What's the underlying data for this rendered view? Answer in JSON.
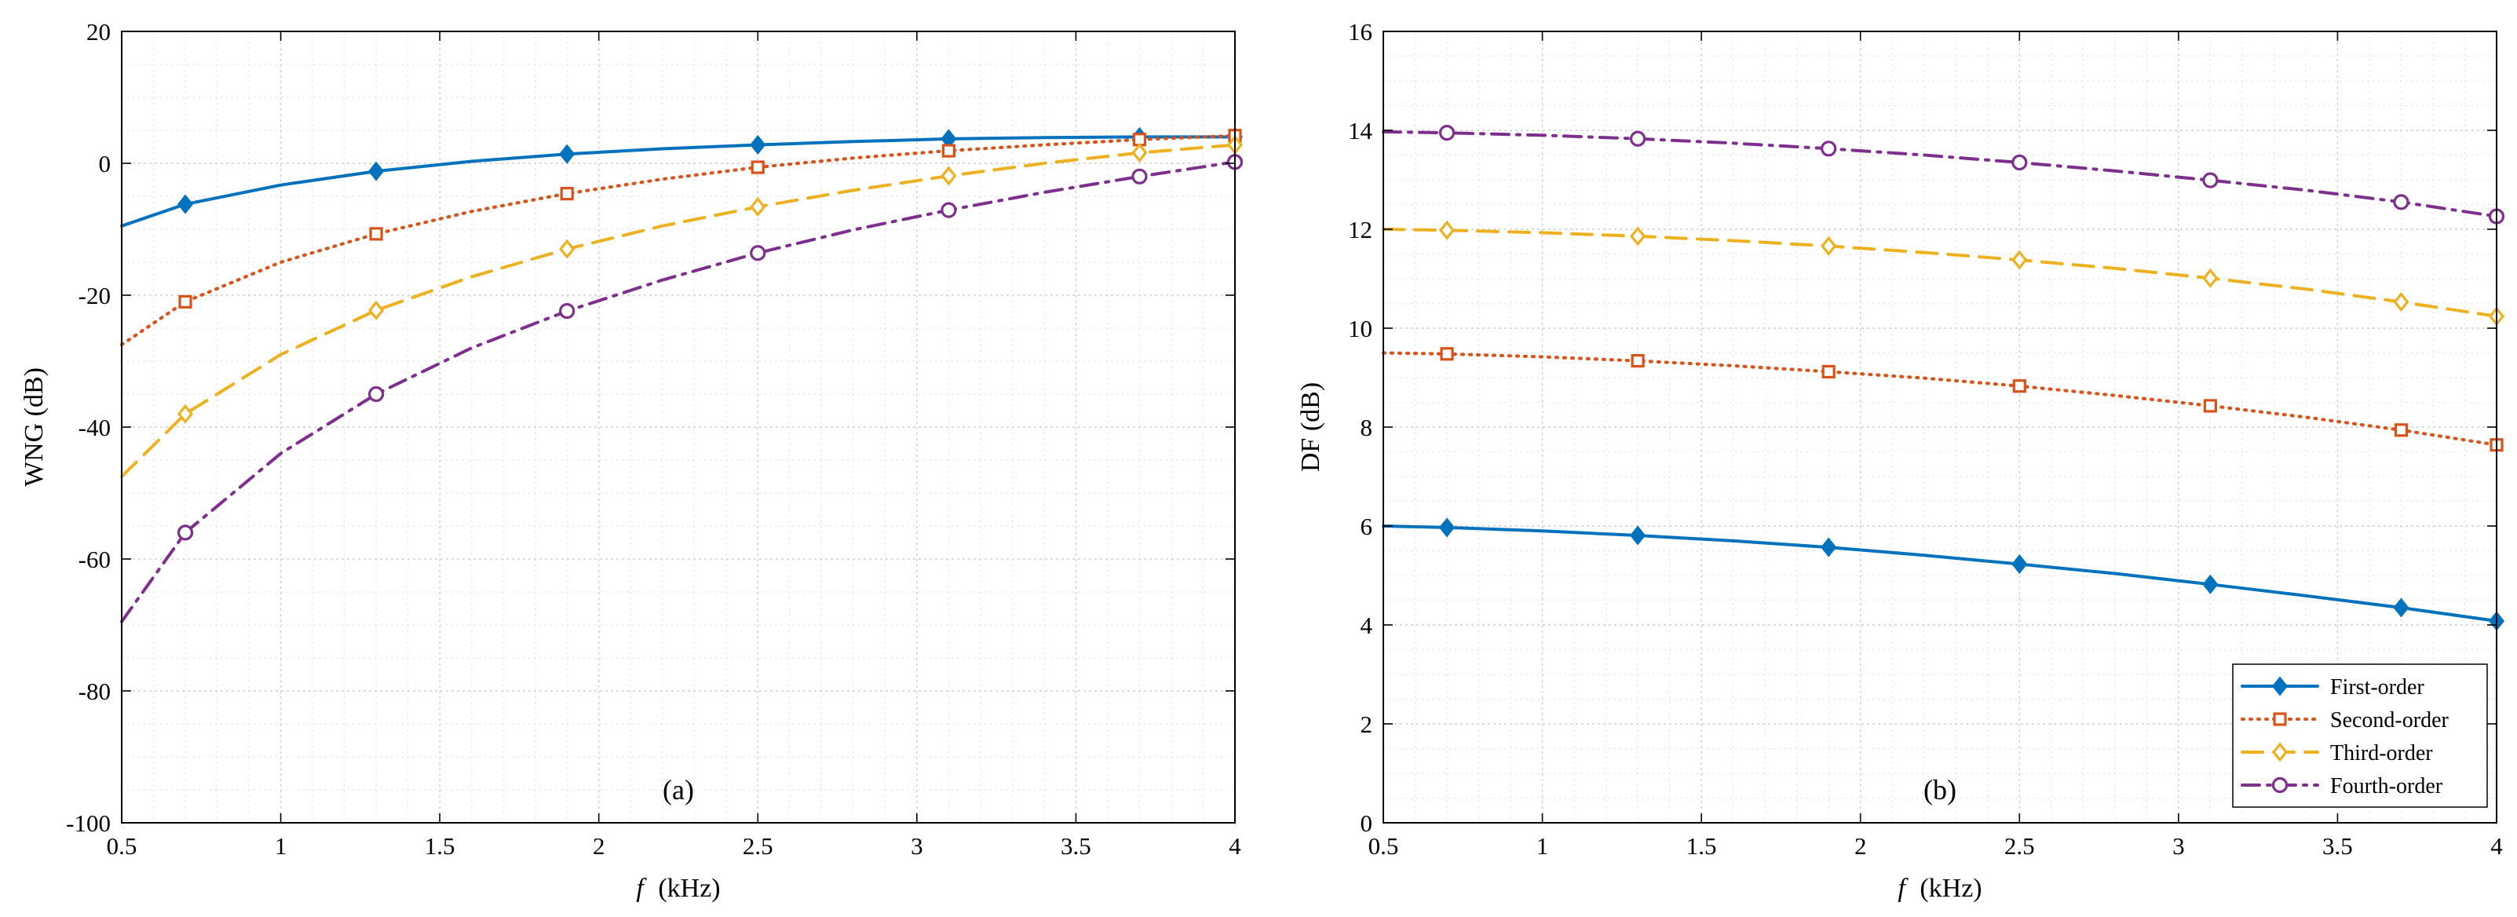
{
  "chart_data": [
    {
      "type": "line",
      "panel_label": "(a)",
      "xlabel_symbol": "f",
      "xlabel_units": "(kHz)",
      "ylabel": "WNG (dB)",
      "xlim": [
        0.5,
        4
      ],
      "ylim": [
        -100,
        20
      ],
      "xticks": [
        0.5,
        1,
        1.5,
        2,
        2.5,
        3,
        3.5,
        4
      ],
      "xtick_labels": [
        "0.5",
        "1",
        "1.5",
        "2",
        "2.5",
        "3",
        "3.5",
        "4"
      ],
      "yticks": [
        -100,
        -80,
        -60,
        -40,
        -20,
        0,
        20
      ],
      "ytick_labels": [
        "-100",
        "-80",
        "-60",
        "-40",
        "-20",
        "0",
        "20"
      ],
      "grid": true,
      "x": [
        0.5,
        0.7,
        1.0,
        1.3,
        1.6,
        1.9,
        2.2,
        2.5,
        2.8,
        3.1,
        3.4,
        3.7,
        4.0
      ],
      "series": [
        {
          "name": "First-order",
          "values": [
            -9.5,
            -6.2,
            -3.3,
            -1.2,
            0.3,
            1.4,
            2.2,
            2.8,
            3.3,
            3.7,
            3.9,
            4.0,
            4.0
          ]
        },
        {
          "name": "Second-order",
          "values": [
            -27.5,
            -21.0,
            -15.0,
            -10.7,
            -7.3,
            -4.6,
            -2.4,
            -0.6,
            0.8,
            1.9,
            2.8,
            3.6,
            4.2
          ]
        },
        {
          "name": "Third-order",
          "values": [
            -47.5,
            -38.0,
            -29.0,
            -22.3,
            -17.2,
            -13.0,
            -9.5,
            -6.6,
            -4.1,
            -1.9,
            0.0,
            1.6,
            2.8
          ]
        },
        {
          "name": "Fourth-order",
          "values": [
            -69.5,
            -56.0,
            -44.0,
            -35.0,
            -28.0,
            -22.4,
            -17.7,
            -13.6,
            -10.1,
            -7.1,
            -4.4,
            -2.0,
            0.2
          ]
        }
      ]
    },
    {
      "type": "line",
      "panel_label": "(b)",
      "xlabel_symbol": "f",
      "xlabel_units": "(kHz)",
      "ylabel": "DF (dB)",
      "xlim": [
        0.5,
        4
      ],
      "ylim": [
        0,
        16
      ],
      "xticks": [
        0.5,
        1,
        1.5,
        2,
        2.5,
        3,
        3.5,
        4
      ],
      "xtick_labels": [
        "0.5",
        "1",
        "1.5",
        "2",
        "2.5",
        "3",
        "3.5",
        "4"
      ],
      "yticks": [
        0,
        2,
        4,
        6,
        8,
        10,
        12,
        14,
        16
      ],
      "ytick_labels": [
        "0",
        "2",
        "4",
        "6",
        "8",
        "10",
        "12",
        "14",
        "16"
      ],
      "grid": true,
      "legend_position": "bottom-right",
      "x": [
        0.5,
        0.7,
        1.0,
        1.3,
        1.6,
        1.9,
        2.2,
        2.5,
        2.8,
        3.1,
        3.4,
        3.7,
        4.0
      ],
      "series": [
        {
          "name": "First-order",
          "values": [
            6.0,
            5.97,
            5.9,
            5.81,
            5.7,
            5.57,
            5.41,
            5.23,
            5.04,
            4.82,
            4.59,
            4.35,
            4.08
          ]
        },
        {
          "name": "Second-order",
          "values": [
            9.5,
            9.48,
            9.42,
            9.34,
            9.24,
            9.12,
            8.99,
            8.83,
            8.64,
            8.43,
            8.2,
            7.94,
            7.64
          ]
        },
        {
          "name": "Third-order",
          "values": [
            12.0,
            11.98,
            11.93,
            11.86,
            11.77,
            11.66,
            11.53,
            11.38,
            11.21,
            11.01,
            10.79,
            10.53,
            10.24
          ]
        },
        {
          "name": "Fourth-order",
          "values": [
            13.97,
            13.95,
            13.9,
            13.83,
            13.74,
            13.63,
            13.5,
            13.35,
            13.18,
            12.99,
            12.79,
            12.55,
            12.26
          ]
        }
      ]
    }
  ],
  "legend": [
    {
      "label": "First-order",
      "color": "#0072BD",
      "dash": "solid",
      "marker": "diamond-filled"
    },
    {
      "label": "Second-order",
      "color": "#D95319",
      "dash": "dotted",
      "marker": "square-open"
    },
    {
      "label": "Third-order",
      "color": "#EDB120",
      "dash": "dashed",
      "marker": "diamond-open"
    },
    {
      "label": "Fourth-order",
      "color": "#7E2F8E",
      "dash": "dashdot",
      "marker": "circle-open"
    }
  ],
  "colors": {
    "first": "#0072BD",
    "second": "#D95319",
    "third": "#EDB120",
    "fourth": "#7E2F8E",
    "grid": "#cfcfcf",
    "background": "#ffffff"
  }
}
